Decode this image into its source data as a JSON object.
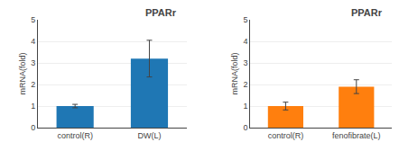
{
  "chart_data": [
    {
      "type": "bar",
      "title": "PPARr",
      "categories": [
        "control(R)",
        "DW(L)"
      ],
      "values": [
        1.0,
        3.2
      ],
      "errors": [
        0.08,
        0.85
      ],
      "ylabel": "mRNA(fold)",
      "ylim": [
        0,
        5
      ],
      "yticks": [
        0,
        1,
        2,
        3,
        4,
        5
      ]
    },
    {
      "type": "bar",
      "title": "PPARr",
      "categories": [
        "control(R)",
        "fenofibrate(L)"
      ],
      "values": [
        1.0,
        1.9
      ],
      "errors": [
        0.18,
        0.32
      ],
      "ylabel": "mRNA(fold)",
      "ylim": [
        0,
        5
      ],
      "yticks": [
        0,
        1,
        2,
        3,
        4,
        5
      ]
    }
  ]
}
